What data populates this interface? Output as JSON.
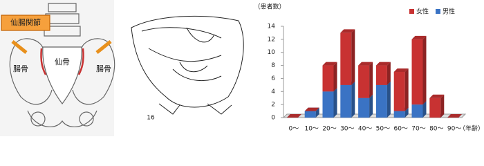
{
  "figure_labels": {
    "joint": "仙腸関節",
    "sacrum": "仙骨",
    "ilium_left": "腸骨",
    "ilium_right": "腸骨",
    "figure_number": "16"
  },
  "chart_data": {
    "type": "bar",
    "stacked": true,
    "y_label": "（患者数）",
    "x_label": "（年齢）",
    "categories": [
      "0〜",
      "10〜",
      "20〜",
      "30〜",
      "40〜",
      "50〜",
      "60〜",
      "70〜",
      "80〜",
      "90〜"
    ],
    "series": [
      {
        "name": "男性",
        "color": "#3a73c4",
        "values": [
          0,
          1,
          4,
          5,
          3,
          5,
          1,
          2,
          0,
          0
        ]
      },
      {
        "name": "女性",
        "color": "#c83232",
        "values": [
          0,
          0,
          4,
          8,
          5,
          3,
          6,
          10,
          3,
          0
        ]
      }
    ],
    "ylim": [
      0,
      14
    ],
    "yticks": [
      0,
      2,
      4,
      6,
      8,
      10,
      12,
      14
    ],
    "legend": "top-right"
  }
}
